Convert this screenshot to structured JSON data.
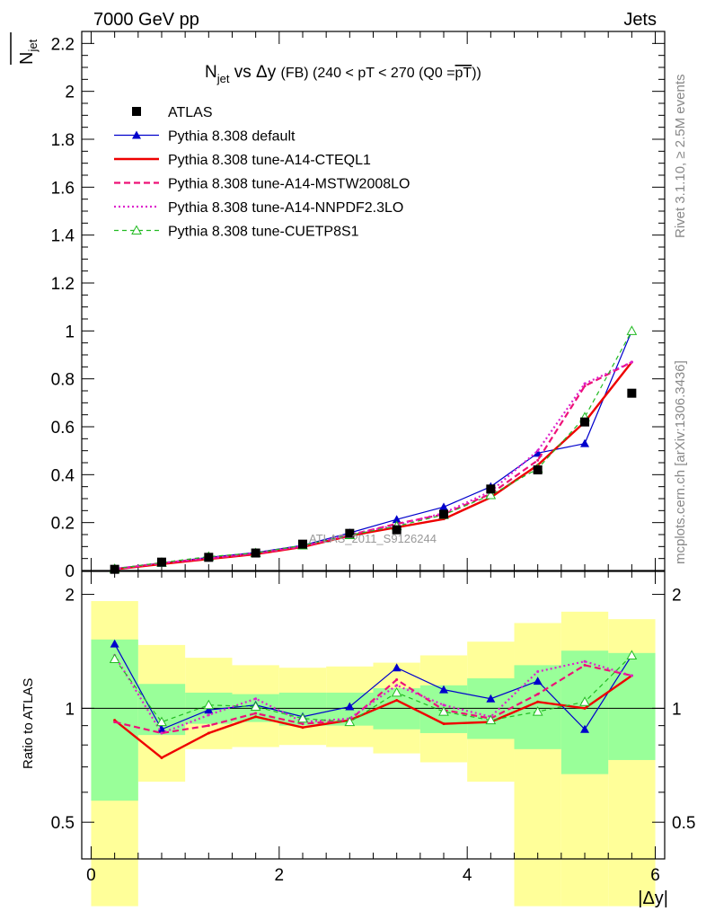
{
  "header": {
    "left": "7000 GeV pp",
    "right": "Jets"
  },
  "title": {
    "main": "N",
    "main_sub": "jet",
    "rest": " vs Δy ",
    "fb": "(FB)",
    "range": " (240 < pT < 270 (Q0 =",
    "over": "pT",
    "close": "))"
  },
  "ylabel_top": {
    "main": "N",
    "sub": "jet"
  },
  "ylabel_bottom": "Ratio to ATLAS",
  "xlabel": "|Δy|",
  "side_text_top": "Rivet 3.1.10, ≥ 2.5M events",
  "side_text_bottom": "mcplots.cern.ch [arXiv:1306.3436]",
  "watermark": "ATLAS_2011_S9126244",
  "colors": {
    "data": "#000000",
    "default": "#0000cc",
    "cteql1": "#ee0000",
    "mstw": "#ee1177",
    "nnpdf": "#dd22cc",
    "cuetp": "#22bb22",
    "band_inner": "#99ff99",
    "band_outer": "#ffff99"
  },
  "chart_data": {
    "type": "line",
    "x": [
      0.25,
      0.75,
      1.25,
      1.75,
      2.25,
      2.75,
      3.25,
      3.75,
      4.25,
      4.75,
      5.25,
      5.75
    ],
    "bin_edges": [
      0,
      0.5,
      1.0,
      1.5,
      2.0,
      2.5,
      3.0,
      3.5,
      4.0,
      4.5,
      5.0,
      5.5,
      6.0
    ],
    "main_ylim": [
      0,
      2.25
    ],
    "main_yticks": [
      "0",
      "0.2",
      "0.4",
      "0.6",
      "0.8",
      "1",
      "1.2",
      "1.4",
      "1.6",
      "1.8",
      "2",
      "2.2"
    ],
    "ratio_ylim": [
      0.4,
      2.3
    ],
    "ratio_yticks": [
      "0.5",
      "1",
      "2"
    ],
    "xlim": [
      -0.1,
      6.1
    ],
    "xticks": [
      "0",
      "2",
      "4",
      "6"
    ],
    "legend_position": "top-left",
    "data": {
      "name": "ATLAS",
      "values": [
        0.005,
        0.035,
        0.055,
        0.073,
        0.11,
        0.155,
        0.17,
        0.235,
        0.34,
        0.42,
        0.62,
        0.74
      ]
    },
    "series": [
      {
        "name": "Pythia 8.308 default",
        "values": [
          0.008,
          0.031,
          0.055,
          0.075,
          0.105,
          0.157,
          0.213,
          0.265,
          0.35,
          0.49,
          0.53,
          1.0
        ],
        "ratio": [
          1.48,
          0.88,
          0.99,
          1.02,
          0.95,
          1.01,
          1.28,
          1.12,
          1.06,
          1.18,
          0.88,
          1.38
        ]
      },
      {
        "name": "Pythia 8.308 tune-A14-CTEQL1",
        "values": [
          0.005,
          0.027,
          0.048,
          0.068,
          0.098,
          0.145,
          0.18,
          0.215,
          0.305,
          0.44,
          0.62,
          0.87
        ],
        "ratio": [
          0.93,
          0.74,
          0.86,
          0.95,
          0.89,
          0.93,
          1.05,
          0.91,
          0.92,
          1.04,
          1.0,
          1.22
        ]
      },
      {
        "name": "Pythia 8.308 tune-A14-MSTW2008LO",
        "values": [
          0.005,
          0.031,
          0.05,
          0.07,
          0.1,
          0.148,
          0.195,
          0.235,
          0.32,
          0.46,
          0.77,
          0.87
        ],
        "ratio": [
          0.92,
          0.86,
          0.9,
          0.97,
          0.91,
          0.93,
          1.19,
          0.99,
          0.94,
          1.09,
          1.3,
          1.22
        ]
      },
      {
        "name": "Pythia 8.308 tune-A14-NNPDF2.3LO",
        "values": [
          0.007,
          0.031,
          0.052,
          0.073,
          0.102,
          0.15,
          0.19,
          0.24,
          0.33,
          0.5,
          0.78,
          0.87
        ],
        "ratio": [
          1.38,
          0.86,
          0.96,
          1.06,
          0.92,
          0.94,
          1.15,
          1.02,
          0.95,
          1.25,
          1.33,
          1.22
        ]
      },
      {
        "name": "Pythia 8.308 tune-CUETP8S1",
        "values": [
          0.007,
          0.033,
          0.058,
          0.073,
          0.105,
          0.148,
          0.185,
          0.232,
          0.315,
          0.425,
          0.64,
          1.0
        ],
        "ratio": [
          1.35,
          0.92,
          1.02,
          1.01,
          0.94,
          0.92,
          1.1,
          0.98,
          0.93,
          0.98,
          1.04,
          1.38
        ]
      }
    ],
    "band_inner": [
      [
        0.57,
        1.52
      ],
      [
        0.85,
        1.16
      ],
      [
        0.91,
        1.1
      ],
      [
        0.92,
        1.09
      ],
      [
        0.9,
        1.1
      ],
      [
        0.9,
        1.1
      ],
      [
        0.88,
        1.13
      ],
      [
        0.86,
        1.15
      ],
      [
        0.83,
        1.2
      ],
      [
        0.78,
        1.3
      ],
      [
        0.67,
        1.42
      ],
      [
        0.73,
        1.4
      ]
    ],
    "band_outer": [
      [
        0.3,
        1.92
      ],
      [
        0.64,
        1.47
      ],
      [
        0.78,
        1.36
      ],
      [
        0.79,
        1.3
      ],
      [
        0.8,
        1.28
      ],
      [
        0.79,
        1.29
      ],
      [
        0.76,
        1.32
      ],
      [
        0.72,
        1.38
      ],
      [
        0.64,
        1.5
      ],
      [
        0.3,
        1.68
      ],
      [
        0.3,
        1.8
      ],
      [
        0.3,
        1.72
      ]
    ]
  }
}
